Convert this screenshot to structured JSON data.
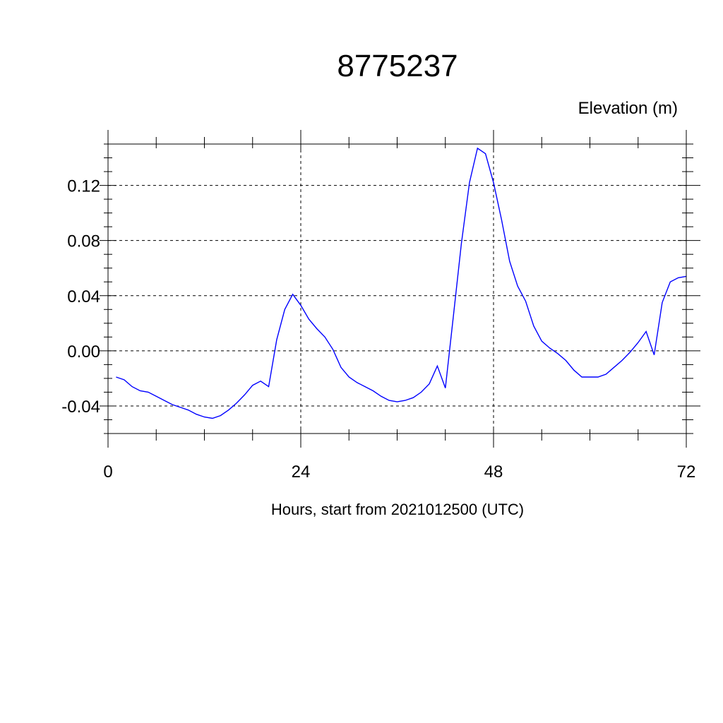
{
  "chart_data": {
    "type": "line",
    "title": "8775237",
    "ylabel": "Elevation (m)",
    "xlabel": "Hours, start from 2021012500 (UTC)",
    "xlim": [
      0,
      72
    ],
    "ylim": [
      -0.06,
      0.15
    ],
    "x_ticks": [
      0,
      24,
      48,
      72
    ],
    "x_tick_labels": [
      "0",
      "24",
      "48",
      "72"
    ],
    "y_ticks": [
      -0.04,
      0.0,
      0.04,
      0.08,
      0.12
    ],
    "y_tick_labels": [
      "-0.04",
      "0.00",
      "0.04",
      "0.08",
      "0.12"
    ],
    "grid": true,
    "series_color": "#0000ff",
    "series": [
      {
        "x": [
          1,
          2,
          3,
          4,
          5,
          6,
          7,
          8,
          9,
          10,
          11,
          12,
          13,
          14,
          15,
          16,
          17,
          18,
          19,
          20,
          21,
          22,
          23,
          24,
          25,
          26,
          27,
          28,
          29,
          30,
          31,
          32,
          33,
          34,
          35,
          36,
          37,
          38,
          39,
          40,
          41,
          42,
          43,
          44,
          45,
          46,
          47,
          48,
          49,
          50,
          51,
          52,
          53,
          54,
          55,
          56,
          57,
          58,
          59,
          60,
          61,
          62,
          63,
          64,
          65,
          66,
          67,
          68,
          69,
          70,
          71,
          72
        ],
        "y": [
          -0.019,
          -0.021,
          -0.026,
          -0.029,
          -0.03,
          -0.033,
          -0.036,
          -0.039,
          -0.041,
          -0.043,
          -0.046,
          -0.048,
          -0.049,
          -0.047,
          -0.043,
          -0.038,
          -0.032,
          -0.025,
          -0.022,
          -0.026,
          0.008,
          0.03,
          0.041,
          0.033,
          0.023,
          0.016,
          0.01,
          0.001,
          -0.012,
          -0.019,
          -0.023,
          -0.026,
          -0.029,
          -0.033,
          -0.036,
          -0.037,
          -0.036,
          -0.034,
          -0.03,
          -0.024,
          -0.011,
          -0.027,
          0.025,
          0.078,
          0.122,
          0.147,
          0.143,
          0.122,
          0.095,
          0.065,
          0.047,
          0.036,
          0.018,
          0.007,
          0.002,
          -0.002,
          -0.007,
          -0.014,
          -0.019,
          -0.019,
          -0.019,
          -0.017,
          -0.012,
          -0.007,
          -0.001,
          0.006,
          0.014,
          -0.003,
          0.035,
          0.05,
          0.053,
          0.054
        ]
      }
    ]
  }
}
